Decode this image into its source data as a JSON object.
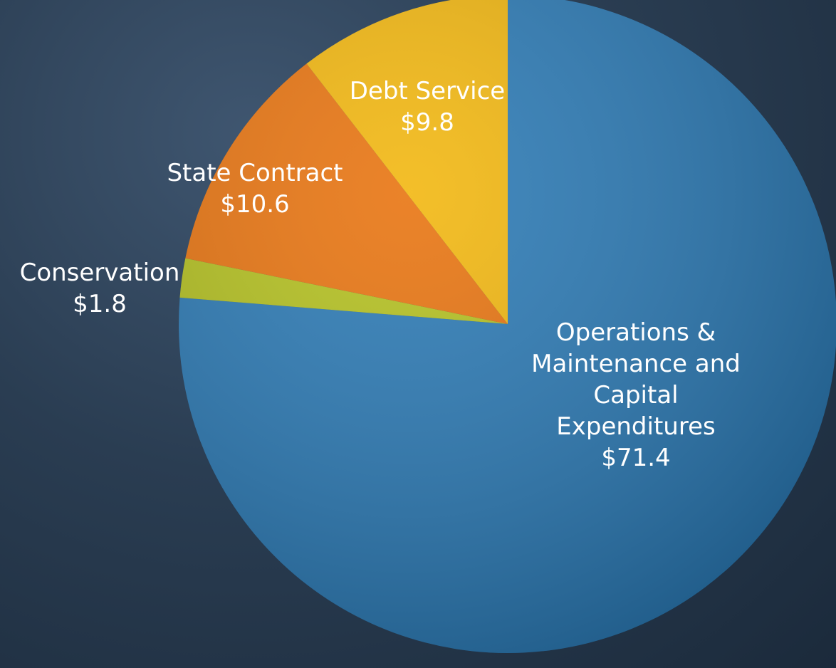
{
  "chart_data": {
    "type": "pie",
    "categories": [
      "Operations & Maintenance and Capital Expenditures",
      "Conservation",
      "State Contract",
      "Debt Service"
    ],
    "values": [
      71.4,
      1.8,
      10.6,
      9.8
    ],
    "value_labels": [
      "$71.4",
      "$1.8",
      "$10.6",
      "$9.8"
    ],
    "colors": [
      "#2878b4",
      "#b3c01c",
      "#e8720c",
      "#f2b60c"
    ]
  }
}
